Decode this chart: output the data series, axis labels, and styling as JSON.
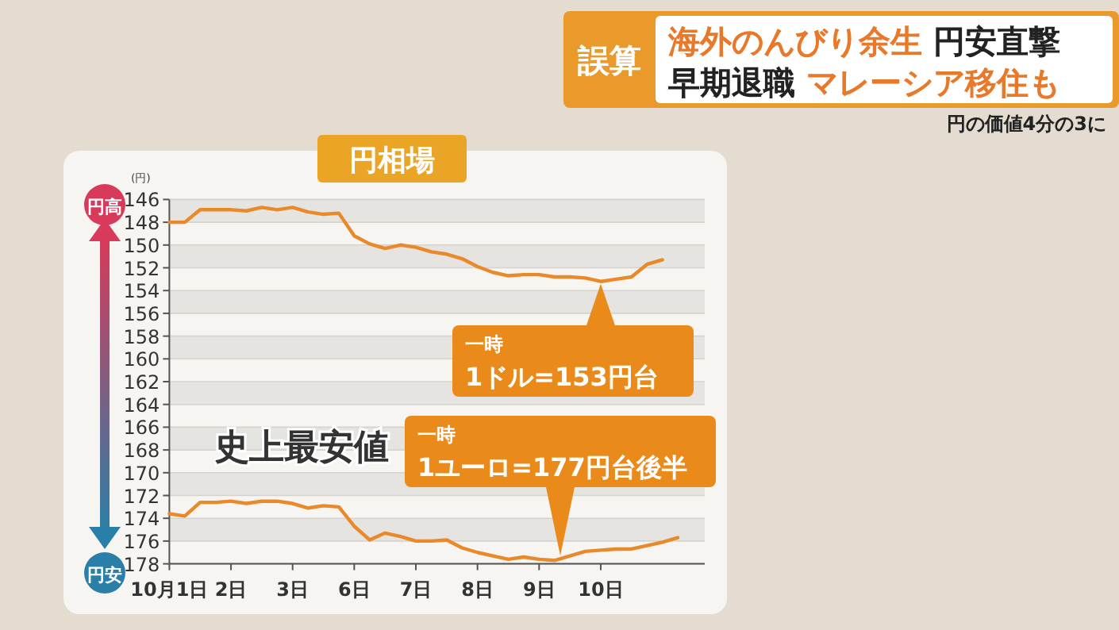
{
  "chart_data": {
    "type": "line",
    "title": "円相場",
    "ylabel": "(円)",
    "annotations": [
      "誤算",
      "海外のんびり余生 円安直撃",
      "早期退職 マレーシア移住も",
      "円の価値4分の3に",
      "史上最安値",
      "円高",
      "円安",
      {
        "text": "一時\n1ドル=153円台",
        "x": "10日",
        "y": 153
      },
      {
        "text": "一時\n1ユーロ=177円台後半",
        "y": 177.7
      }
    ],
    "categories": [
      "10月1日",
      null,
      null,
      null,
      "2日",
      null,
      null,
      null,
      "3日",
      null,
      null,
      null,
      "6日",
      null,
      null,
      null,
      "7日",
      null,
      null,
      null,
      "8日",
      null,
      null,
      null,
      "9日",
      null,
      null,
      null,
      "10日",
      null,
      null,
      null,
      null,
      null
    ],
    "ylim": [
      178,
      146
    ],
    "yticks": [
      146,
      148,
      150,
      152,
      154,
      156,
      158,
      160,
      162,
      164,
      166,
      168,
      170,
      172,
      174,
      176,
      178
    ],
    "grid": "y",
    "marker": "none",
    "line_style": "solid",
    "series": [
      {
        "color": "#e8892a",
        "values": [
          148.0,
          148.0,
          146.9,
          146.9,
          146.9,
          147.0,
          146.7,
          146.9,
          146.7,
          147.1,
          147.3,
          147.2,
          149.2,
          149.9,
          150.3,
          150.0,
          150.2,
          150.6,
          150.8,
          151.2,
          151.9,
          152.4,
          152.7,
          152.6,
          152.6,
          152.8,
          152.8,
          152.9,
          153.2,
          153.0,
          152.8,
          151.7,
          151.3,
          null
        ]
      },
      {
        "color": "#e8892a",
        "values": [
          173.6,
          173.8,
          172.6,
          172.6,
          172.5,
          172.7,
          172.5,
          172.5,
          172.7,
          173.1,
          172.9,
          173.0,
          174.7,
          175.9,
          175.3,
          175.6,
          176.0,
          176.0,
          175.9,
          176.6,
          177.0,
          177.3,
          177.6,
          177.4,
          177.6,
          177.7,
          177.3,
          176.9,
          176.8,
          176.7,
          176.7,
          176.4,
          176.1,
          175.7
        ]
      }
    ]
  }
}
